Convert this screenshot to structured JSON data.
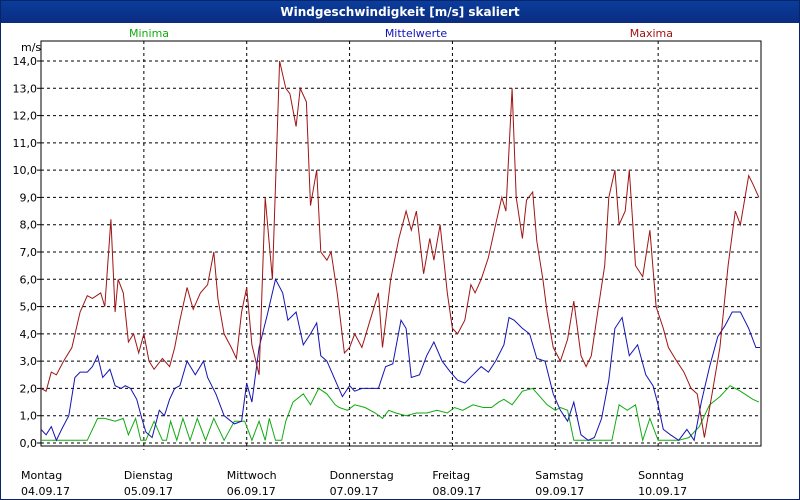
{
  "window": {
    "title": "Windgeschwindigkeit [m/s] skaliert"
  },
  "chart_data": {
    "type": "line",
    "title": "Windgeschwindigkeit [m/s] skaliert",
    "ylabel": "m/s",
    "ylim": [
      0,
      14.5
    ],
    "yticks": [
      "0,0",
      "1,0",
      "2,0",
      "3,0",
      "4,0",
      "5,0",
      "6,0",
      "7,0",
      "8,0",
      "9,0",
      "10,0",
      "11,0",
      "12,0",
      "13,0",
      "14,0"
    ],
    "xlim": [
      0,
      7
    ],
    "days": [
      {
        "name": "Montag",
        "date": "04.09.17"
      },
      {
        "name": "Dienstag",
        "date": "05.09.17"
      },
      {
        "name": "Mittwoch",
        "date": "06.09.17"
      },
      {
        "name": "Donnerstag",
        "date": "07.09.17"
      },
      {
        "name": "Freitag",
        "date": "08.09.17"
      },
      {
        "name": "Samstag",
        "date": "09.09.17"
      },
      {
        "name": "Sonntag",
        "date": "10.09.17"
      }
    ],
    "grid": true,
    "series": [
      {
        "name": "Minima",
        "color": "#11aa11",
        "x": [
          0,
          0.08,
          0.2,
          0.3,
          0.45,
          0.55,
          0.62,
          0.72,
          0.8,
          0.85,
          0.92,
          0.97,
          1.02,
          1.1,
          1.18,
          1.22,
          1.26,
          1.32,
          1.38,
          1.45,
          1.52,
          1.6,
          1.68,
          1.78,
          1.88,
          1.93,
          1.98,
          2.05,
          2.12,
          2.18,
          2.22,
          2.28,
          2.34,
          2.38,
          2.45,
          2.55,
          2.62,
          2.7,
          2.78,
          2.86,
          2.9,
          2.98,
          3.05,
          3.15,
          3.25,
          3.32,
          3.38,
          3.45,
          3.55,
          3.65,
          3.75,
          3.85,
          3.95,
          4.02,
          4.1,
          4.2,
          4.3,
          4.38,
          4.45,
          4.5,
          4.58,
          4.68,
          4.78,
          4.85,
          4.92,
          5.0,
          5.05,
          5.12,
          5.18,
          5.25,
          5.32,
          5.4,
          5.45,
          5.5,
          5.55,
          5.62,
          5.7,
          5.78,
          5.85,
          5.92,
          6.0,
          6.1,
          6.2,
          6.3,
          6.4,
          6.5,
          6.6,
          6.7,
          6.8,
          6.92,
          6.98
        ],
        "values": [
          0.1,
          0.1,
          0.1,
          0.1,
          0.1,
          0.9,
          0.9,
          0.8,
          0.9,
          0.3,
          0.9,
          0.1,
          0.1,
          0.8,
          0.1,
          0.1,
          0.8,
          0.1,
          0.9,
          0.1,
          0.9,
          0.1,
          0.9,
          0.1,
          0.8,
          0.8,
          0.8,
          0.1,
          0.8,
          0.1,
          0.9,
          0.1,
          0.1,
          0.8,
          1.5,
          1.8,
          1.4,
          2.0,
          1.8,
          1.4,
          1.3,
          1.2,
          1.4,
          1.3,
          1.1,
          0.9,
          1.2,
          1.1,
          1.0,
          1.1,
          1.1,
          1.2,
          1.1,
          1.3,
          1.2,
          1.4,
          1.3,
          1.3,
          1.5,
          1.6,
          1.4,
          1.9,
          2.0,
          1.7,
          1.4,
          1.2,
          1.3,
          1.2,
          0.1,
          0.1,
          0.1,
          0.1,
          0.1,
          0.1,
          0.1,
          1.4,
          1.2,
          1.4,
          0.1,
          0.9,
          0.1,
          0.1,
          0.1,
          0.2,
          0.6,
          1.4,
          1.7,
          2.1,
          1.9,
          1.6,
          1.5
        ]
      },
      {
        "name": "Mittelwerte",
        "color": "#1414b4",
        "x": [
          0,
          0.05,
          0.1,
          0.15,
          0.2,
          0.27,
          0.33,
          0.38,
          0.45,
          0.5,
          0.55,
          0.6,
          0.67,
          0.72,
          0.78,
          0.82,
          0.87,
          0.93,
          0.98,
          1.02,
          1.08,
          1.15,
          1.2,
          1.25,
          1.3,
          1.35,
          1.42,
          1.5,
          1.58,
          1.62,
          1.7,
          1.78,
          1.88,
          1.95,
          2.0,
          2.05,
          2.12,
          2.2,
          2.28,
          2.35,
          2.4,
          2.48,
          2.55,
          2.62,
          2.68,
          2.72,
          2.78,
          2.86,
          2.93,
          3.0,
          3.05,
          3.12,
          3.2,
          3.28,
          3.35,
          3.42,
          3.5,
          3.55,
          3.6,
          3.68,
          3.75,
          3.82,
          3.9,
          3.98,
          4.05,
          4.12,
          4.2,
          4.28,
          4.35,
          4.42,
          4.5,
          4.55,
          4.6,
          4.68,
          4.75,
          4.82,
          4.9,
          4.98,
          5.05,
          5.12,
          5.18,
          5.25,
          5.32,
          5.38,
          5.45,
          5.52,
          5.58,
          5.65,
          5.72,
          5.8,
          5.88,
          5.95,
          6.0,
          6.05,
          6.12,
          6.2,
          6.28,
          6.35,
          6.42,
          6.5,
          6.58,
          6.65,
          6.72,
          6.8,
          6.88,
          6.95,
          6.99
        ],
        "values": [
          0.5,
          0.3,
          0.6,
          0.1,
          0.5,
          1.0,
          2.4,
          2.6,
          2.6,
          2.8,
          3.2,
          2.4,
          2.7,
          2.1,
          2.0,
          2.1,
          2.0,
          1.6,
          0.9,
          0.4,
          0.2,
          1.2,
          1.0,
          1.6,
          2.0,
          2.1,
          3.0,
          2.5,
          3.0,
          2.4,
          1.8,
          1.0,
          0.7,
          0.8,
          2.2,
          1.5,
          3.5,
          4.7,
          6.0,
          5.5,
          4.5,
          4.8,
          3.6,
          4.0,
          4.4,
          3.2,
          3.0,
          2.3,
          1.7,
          2.1,
          1.9,
          2.0,
          2.0,
          2.0,
          2.8,
          2.9,
          4.5,
          4.2,
          2.4,
          2.5,
          3.2,
          3.7,
          3.0,
          2.6,
          2.3,
          2.2,
          2.5,
          2.8,
          2.6,
          3.0,
          3.6,
          4.6,
          4.5,
          4.2,
          4.0,
          3.1,
          3.0,
          1.8,
          1.2,
          0.8,
          1.5,
          0.3,
          0.1,
          0.2,
          0.9,
          2.3,
          4.2,
          4.6,
          3.2,
          3.6,
          2.5,
          2.1,
          1.4,
          0.5,
          0.3,
          0.1,
          0.5,
          0.1,
          1.5,
          2.8,
          3.9,
          4.3,
          4.8,
          4.8,
          4.2,
          3.5,
          3.5
        ]
      },
      {
        "name": "Maxima",
        "color": "#a01414",
        "x": [
          0,
          0.05,
          0.1,
          0.15,
          0.22,
          0.3,
          0.38,
          0.45,
          0.5,
          0.58,
          0.62,
          0.68,
          0.72,
          0.75,
          0.8,
          0.85,
          0.9,
          0.95,
          1.0,
          1.05,
          1.1,
          1.18,
          1.25,
          1.3,
          1.35,
          1.42,
          1.48,
          1.55,
          1.62,
          1.68,
          1.72,
          1.78,
          1.85,
          1.9,
          1.95,
          2.0,
          2.05,
          2.12,
          2.18,
          2.25,
          2.32,
          2.38,
          2.42,
          2.48,
          2.52,
          2.58,
          2.62,
          2.68,
          2.72,
          2.78,
          2.82,
          2.88,
          2.95,
          3.0,
          3.05,
          3.12,
          3.2,
          3.28,
          3.32,
          3.4,
          3.48,
          3.55,
          3.6,
          3.65,
          3.72,
          3.78,
          3.82,
          3.88,
          3.95,
          4.0,
          4.05,
          4.12,
          4.18,
          4.22,
          4.28,
          4.35,
          4.42,
          4.48,
          4.52,
          4.58,
          4.62,
          4.68,
          4.72,
          4.78,
          4.82,
          4.88,
          4.92,
          4.98,
          5.05,
          5.12,
          5.18,
          5.25,
          5.3,
          5.35,
          5.42,
          5.48,
          5.52,
          5.58,
          5.62,
          5.68,
          5.72,
          5.78,
          5.85,
          5.92,
          5.98,
          6.05,
          6.1,
          6.18,
          6.25,
          6.32,
          6.38,
          6.45,
          6.52,
          6.6,
          6.68,
          6.75,
          6.8,
          6.88,
          6.92,
          6.98
        ],
        "values": [
          2.0,
          1.9,
          2.6,
          2.5,
          3.0,
          3.5,
          4.8,
          5.4,
          5.3,
          5.5,
          5.0,
          8.2,
          4.8,
          6.0,
          5.5,
          3.7,
          4.0,
          3.3,
          4.0,
          3.0,
          2.7,
          3.1,
          2.8,
          3.5,
          4.5,
          5.7,
          4.9,
          5.5,
          5.8,
          7.0,
          5.3,
          4.0,
          3.5,
          3.1,
          4.8,
          5.7,
          3.6,
          2.5,
          9.0,
          6.0,
          14.0,
          13.0,
          12.8,
          11.6,
          13.0,
          12.5,
          8.7,
          10.0,
          7.0,
          6.7,
          7.0,
          5.5,
          3.3,
          3.5,
          4.0,
          3.5,
          4.5,
          5.5,
          3.5,
          6.0,
          7.5,
          8.5,
          7.8,
          8.5,
          6.2,
          7.5,
          6.7,
          8.0,
          5.5,
          4.2,
          4.0,
          4.5,
          5.8,
          5.5,
          6.0,
          6.8,
          8.0,
          9.0,
          8.5,
          13.0,
          9.0,
          7.5,
          8.9,
          9.2,
          7.4,
          6.0,
          4.8,
          3.5,
          3.0,
          3.8,
          5.2,
          3.2,
          2.8,
          3.2,
          5.0,
          6.5,
          9.0,
          10.0,
          8.0,
          8.5,
          10.0,
          6.5,
          6.1,
          7.8,
          5.0,
          4.2,
          3.5,
          3.0,
          2.6,
          2.0,
          1.8,
          0.2,
          1.7,
          3.5,
          6.5,
          8.5,
          8.0,
          9.8,
          9.5,
          9.0
        ]
      }
    ]
  }
}
